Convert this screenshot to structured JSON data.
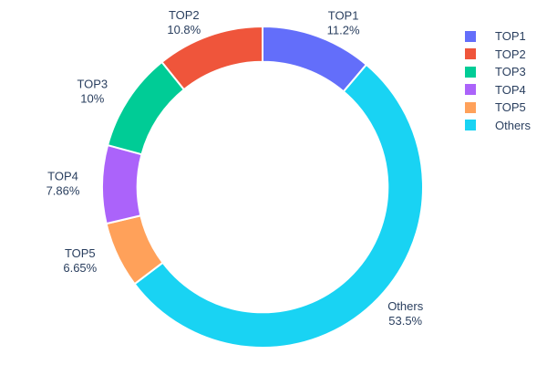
{
  "chart_data": {
    "type": "pie",
    "subtype": "donut",
    "title": "",
    "labels": [
      "TOP1",
      "TOP2",
      "TOP3",
      "TOP4",
      "TOP5",
      "Others"
    ],
    "values": [
      11.2,
      10.8,
      10,
      7.86,
      6.65,
      53.5
    ],
    "percent_labels": [
      "11.2%",
      "10.8%",
      "10%",
      "7.86%",
      "6.65%",
      "53.5%"
    ],
    "colors": [
      "#636EFA",
      "#EF553B",
      "#00CC96",
      "#AB63FA",
      "#FFA15A",
      "#19D3F3"
    ],
    "hole": 0.78,
    "rotation_deg": 0,
    "clockwise_order": [
      "TOP1",
      "Others",
      "TOP5",
      "TOP4",
      "TOP3",
      "TOP2"
    ],
    "label_position": "outside",
    "legend_position": "top-right",
    "text_color": "#2a3f5f",
    "background_color": "#ffffff",
    "separator_color": "#ffffff"
  }
}
